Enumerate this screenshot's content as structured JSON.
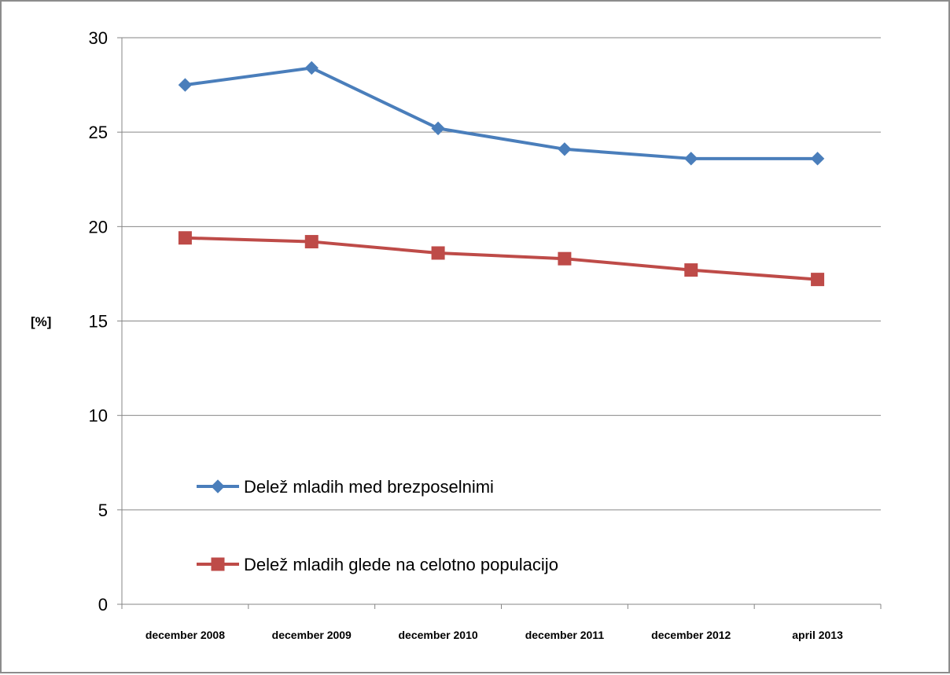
{
  "chart_data": {
    "type": "line",
    "title": "",
    "xlabel": "",
    "ylabel": "[%]",
    "categories": [
      "december 2008",
      "december 2009",
      "december 2010",
      "december 2011",
      "december 2012",
      "april 2013"
    ],
    "ylim": [
      0,
      30
    ],
    "yticks": [
      0,
      5,
      10,
      15,
      20,
      25,
      30
    ],
    "grid": "horizontal",
    "legend_position": "inside-lower-left",
    "series": [
      {
        "name": "Delež mladih med brezposelnimi",
        "values": [
          27.5,
          28.4,
          25.2,
          24.1,
          23.6,
          23.6
        ],
        "color": "#4a7ebb",
        "marker": "diamond"
      },
      {
        "name": "Delež mladih glede na celotno populacijo",
        "values": [
          19.4,
          19.2,
          18.6,
          18.3,
          17.7,
          17.2
        ],
        "color": "#be4b48",
        "marker": "square"
      }
    ]
  }
}
